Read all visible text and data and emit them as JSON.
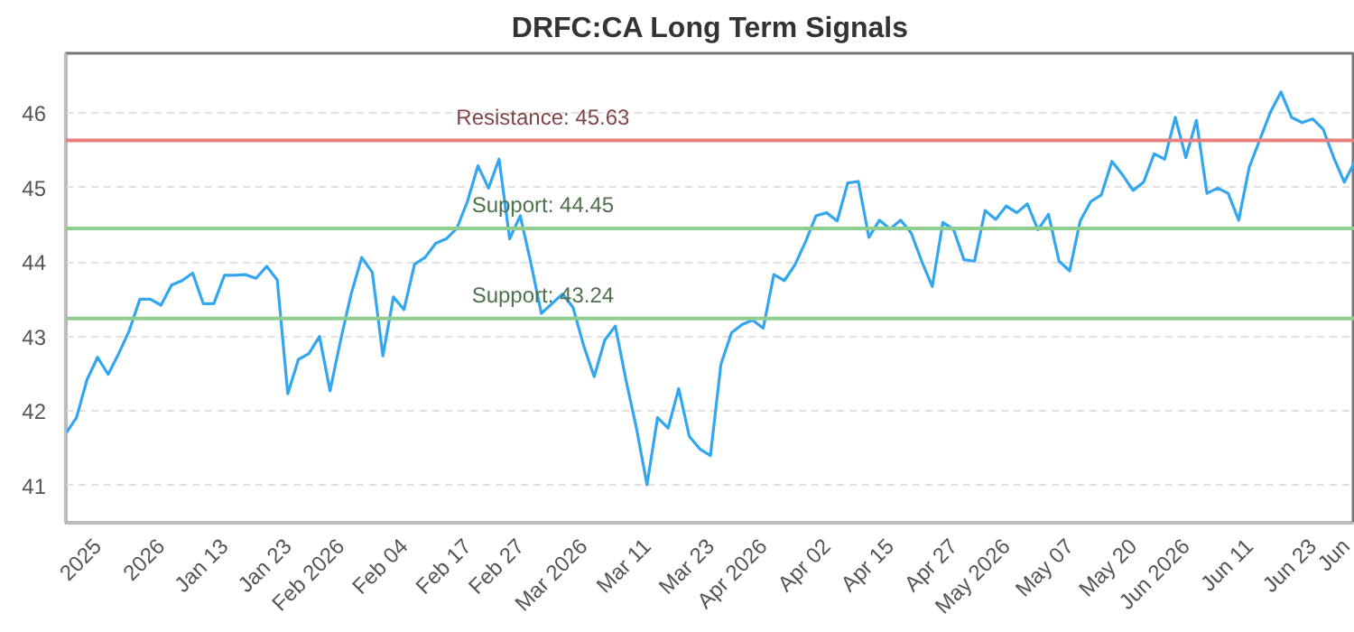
{
  "chart_data": {
    "type": "line",
    "title": "DRFC:CA Long Term Signals",
    "categories": [
      null,
      null,
      null,
      "2025",
      null,
      null,
      null,
      null,
      null,
      "2026",
      null,
      null,
      null,
      null,
      null,
      "Jan 13",
      null,
      null,
      null,
      null,
      null,
      "Jan 23",
      null,
      null,
      null,
      null,
      "Feb 2026",
      null,
      null,
      null,
      null,
      null,
      "Feb 04",
      null,
      null,
      null,
      null,
      null,
      "Feb 17",
      null,
      null,
      null,
      null,
      "Feb 27",
      null,
      null,
      null,
      null,
      null,
      "Mar 2026",
      null,
      null,
      null,
      null,
      null,
      "Mar 11",
      null,
      null,
      null,
      null,
      null,
      "Mar 23",
      null,
      null,
      null,
      null,
      "Apr 2026",
      null,
      null,
      null,
      null,
      null,
      "Apr 02",
      null,
      null,
      null,
      null,
      null,
      "Apr 15",
      null,
      null,
      null,
      null,
      null,
      "Apr 27",
      null,
      null,
      null,
      null,
      "May 2026",
      null,
      null,
      null,
      null,
      null,
      "May 07",
      null,
      null,
      null,
      null,
      null,
      "May 20",
      null,
      null,
      null,
      null,
      "Jun 2026",
      null,
      null,
      null,
      null,
      null,
      "Jun 11",
      null,
      null,
      null,
      null,
      null,
      "Jun 23",
      null,
      null,
      null,
      "Jun"
    ],
    "series": [
      {
        "color": "#33a6f0",
        "values": [
          41.7,
          41.91,
          42.42,
          42.72,
          42.49,
          42.77,
          43.08,
          43.5,
          43.5,
          43.42,
          43.69,
          43.75,
          43.85,
          43.44,
          43.44,
          43.82,
          43.82,
          43.83,
          43.78,
          43.94,
          43.76,
          42.23,
          42.69,
          42.77,
          43.0,
          42.27,
          42.95,
          43.57,
          44.06,
          43.86,
          42.74,
          43.53,
          43.36,
          43.97,
          44.06,
          44.25,
          44.31,
          44.45,
          44.81,
          45.29,
          44.99,
          45.38,
          44.31,
          44.62,
          43.99,
          43.31,
          43.44,
          43.57,
          43.39,
          42.88,
          42.46,
          42.95,
          43.14,
          42.42,
          41.77,
          41.01,
          41.91,
          41.77,
          42.3,
          41.66,
          41.49,
          41.4,
          42.63,
          43.05,
          43.16,
          43.22,
          43.11,
          43.83,
          43.75,
          43.96,
          44.27,
          44.62,
          44.66,
          44.55,
          45.06,
          45.08,
          44.33,
          44.56,
          44.44,
          44.56,
          44.39,
          44.01,
          43.67,
          44.53,
          44.44,
          44.03,
          44.01,
          44.69,
          44.57,
          44.75,
          44.66,
          44.78,
          44.43,
          44.64,
          44.01,
          43.88,
          44.55,
          44.81,
          44.9,
          45.35,
          45.17,
          44.96,
          45.07,
          45.45,
          45.38,
          45.94,
          45.4,
          45.9,
          44.92,
          44.99,
          44.92,
          44.56,
          45.27,
          45.64,
          46.01,
          46.28,
          45.94,
          45.87,
          45.92,
          45.78,
          45.4,
          45.07,
          45.35
        ]
      }
    ],
    "ylim": [
      40.5,
      46.8
    ],
    "yticks": [
      41,
      42,
      43,
      44,
      45,
      46
    ],
    "grid": "y",
    "ref_lines": [
      {
        "axis": "y",
        "value": 45.63,
        "label": "Resistance: 45.63",
        "color": "#e88080"
      },
      {
        "axis": "y",
        "value": 44.45,
        "label": "Support: 44.45",
        "color": "#8fce8f"
      },
      {
        "axis": "y",
        "value": 43.24,
        "label": "Support: 43.24",
        "color": "#8fce8f"
      }
    ]
  }
}
